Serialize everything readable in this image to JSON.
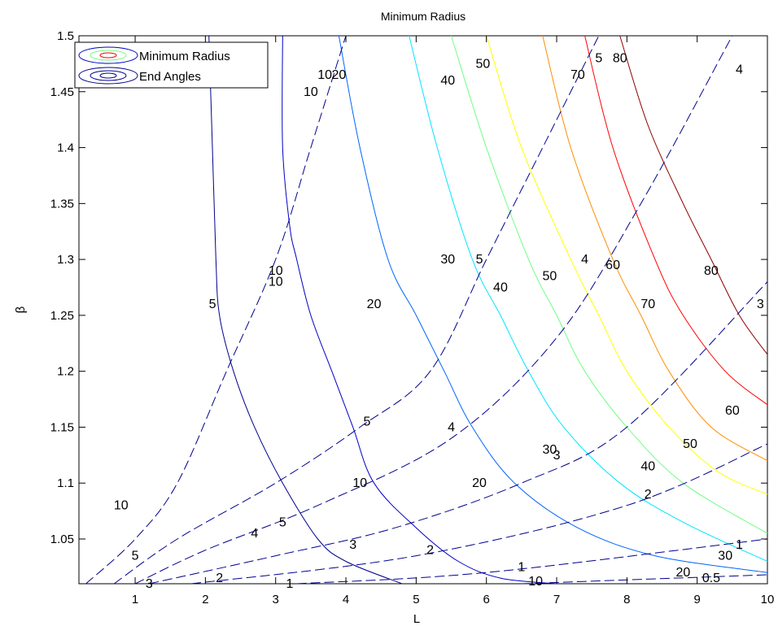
{
  "chart_data": {
    "type": "contour",
    "title": "Minimum Radius",
    "xlabel": "L",
    "ylabel": "β",
    "xlim": [
      0.2,
      10
    ],
    "ylim": [
      1.01,
      1.5
    ],
    "xticks": [
      "1",
      "2",
      "3",
      "4",
      "5",
      "6",
      "7",
      "8",
      "9",
      "10"
    ],
    "yticks": [
      "1.05",
      "1.1",
      "1.15",
      "1.2",
      "1.25",
      "1.3",
      "1.35",
      "1.4",
      "1.45",
      "1.5"
    ],
    "grid": false,
    "legend": {
      "placement": "top-left",
      "entries": [
        "Minimum Radius",
        "End Angles"
      ]
    },
    "series": [
      {
        "name": "Minimum Radius",
        "style": "solid",
        "levels": [
          {
            "level": 5,
            "color": "#00008f",
            "points": [
              [
                2.05,
                1.5
              ],
              [
                2.1,
                1.4
              ],
              [
                2.15,
                1.3
              ],
              [
                2.2,
                1.25
              ],
              [
                2.4,
                1.2
              ],
              [
                2.7,
                1.15
              ],
              [
                3.1,
                1.1
              ],
              [
                3.6,
                1.05
              ],
              [
                4.0,
                1.03
              ],
              [
                4.8,
                1.01
              ]
            ],
            "labels": [
              {
                "text": "5",
                "x": 2.1,
                "y": 1.26
              },
              {
                "text": "5",
                "x": 3.1,
                "y": 1.065
              }
            ]
          },
          {
            "level": 10,
            "color": "#0000c8",
            "points": [
              [
                3.1,
                1.5
              ],
              [
                3.1,
                1.4
              ],
              [
                3.2,
                1.33
              ],
              [
                3.3,
                1.3
              ],
              [
                3.5,
                1.25
              ],
              [
                3.8,
                1.2
              ],
              [
                4.1,
                1.15
              ],
              [
                4.4,
                1.1
              ],
              [
                5.0,
                1.06
              ],
              [
                5.6,
                1.03
              ],
              [
                6.2,
                1.015
              ],
              [
                7.0,
                1.01
              ]
            ],
            "labels": [
              {
                "text": "10",
                "x": 3.7,
                "y": 1.465
              },
              {
                "text": "10",
                "x": 3.0,
                "y": 1.29
              },
              {
                "text": "10",
                "x": 4.2,
                "y": 1.1
              },
              {
                "text": "10",
                "x": 6.7,
                "y": 1.012
              }
            ]
          },
          {
            "level": 20,
            "color": "#0064ff",
            "points": [
              [
                3.9,
                1.5
              ],
              [
                4.2,
                1.4
              ],
              [
                4.6,
                1.3
              ],
              [
                5.0,
                1.25
              ],
              [
                5.4,
                1.2
              ],
              [
                5.8,
                1.15
              ],
              [
                6.4,
                1.1
              ],
              [
                7.3,
                1.06
              ],
              [
                8.4,
                1.035
              ],
              [
                10,
                1.02
              ]
            ],
            "labels": [
              {
                "text": "20",
                "x": 3.9,
                "y": 1.465
              },
              {
                "text": "20",
                "x": 4.4,
                "y": 1.26
              },
              {
                "text": "20",
                "x": 5.9,
                "y": 1.1
              },
              {
                "text": "20",
                "x": 8.8,
                "y": 1.02
              }
            ]
          },
          {
            "level": 30,
            "color": "#00e6ff",
            "points": [
              [
                4.9,
                1.5
              ],
              [
                5.3,
                1.4
              ],
              [
                5.8,
                1.3
              ],
              [
                6.2,
                1.25
              ],
              [
                6.6,
                1.2
              ],
              [
                7.1,
                1.15
              ],
              [
                7.9,
                1.1
              ],
              [
                8.8,
                1.065
              ],
              [
                10,
                1.03
              ]
            ],
            "labels": [
              {
                "text": "30",
                "x": 5.45,
                "y": 1.3
              },
              {
                "text": "30",
                "x": 6.9,
                "y": 1.13
              },
              {
                "text": "30",
                "x": 9.4,
                "y": 1.035
              }
            ]
          },
          {
            "level": 40,
            "color": "#6eff82",
            "points": [
              [
                5.5,
                1.5
              ],
              [
                6.0,
                1.4
              ],
              [
                6.6,
                1.3
              ],
              [
                7.0,
                1.25
              ],
              [
                7.4,
                1.2
              ],
              [
                8.0,
                1.15
              ],
              [
                8.8,
                1.1
              ],
              [
                10,
                1.055
              ]
            ],
            "labels": [
              {
                "text": "40",
                "x": 5.45,
                "y": 1.46
              },
              {
                "text": "40",
                "x": 6.2,
                "y": 1.275
              },
              {
                "text": "40",
                "x": 8.3,
                "y": 1.115
              }
            ]
          },
          {
            "level": 50,
            "color": "#ffff00",
            "points": [
              [
                6.0,
                1.5
              ],
              [
                6.5,
                1.4
              ],
              [
                7.2,
                1.3
              ],
              [
                7.6,
                1.25
              ],
              [
                8.0,
                1.2
              ],
              [
                8.6,
                1.15
              ],
              [
                9.3,
                1.11
              ],
              [
                10,
                1.09
              ]
            ],
            "labels": [
              {
                "text": "50",
                "x": 5.95,
                "y": 1.475
              },
              {
                "text": "50",
                "x": 6.9,
                "y": 1.285
              },
              {
                "text": "50",
                "x": 8.9,
                "y": 1.135
              }
            ]
          },
          {
            "level": 60,
            "color": "#ff8c00",
            "points": [
              [
                6.8,
                1.5
              ],
              [
                7.2,
                1.4
              ],
              [
                7.8,
                1.3
              ],
              [
                8.2,
                1.25
              ],
              [
                8.6,
                1.2
              ],
              [
                9.2,
                1.15
              ],
              [
                10,
                1.12
              ]
            ],
            "labels": [
              {
                "text": "60",
                "x": 7.8,
                "y": 1.295
              },
              {
                "text": "60",
                "x": 9.5,
                "y": 1.165
              }
            ]
          },
          {
            "level": 70,
            "color": "#ff0000",
            "points": [
              [
                7.4,
                1.5
              ],
              [
                7.8,
                1.4
              ],
              [
                8.4,
                1.3
              ],
              [
                8.8,
                1.25
              ],
              [
                9.4,
                1.2
              ],
              [
                10,
                1.17
              ]
            ],
            "labels": [
              {
                "text": "70",
                "x": 7.3,
                "y": 1.465
              },
              {
                "text": "70",
                "x": 8.3,
                "y": 1.26
              }
            ]
          },
          {
            "level": 80,
            "color": "#8b0000",
            "points": [
              [
                7.9,
                1.5
              ],
              [
                8.3,
                1.42
              ],
              [
                8.8,
                1.35
              ],
              [
                9.2,
                1.3
              ],
              [
                9.6,
                1.25
              ],
              [
                10,
                1.215
              ]
            ],
            "labels": [
              {
                "text": "80",
                "x": 7.9,
                "y": 1.48
              },
              {
                "text": "80",
                "x": 9.2,
                "y": 1.29
              }
            ]
          }
        ]
      },
      {
        "name": "End Angles",
        "style": "dashed",
        "levels": [
          {
            "level": 10,
            "color": "#00008f",
            "points": [
              [
                0.3,
                1.01
              ],
              [
                1.0,
                1.05
              ],
              [
                1.6,
                1.1
              ],
              [
                2.3,
                1.2
              ],
              [
                3.0,
                1.3
              ],
              [
                3.5,
                1.4
              ],
              [
                4.0,
                1.5
              ]
            ],
            "labels": [
              {
                "text": "10",
                "x": 0.8,
                "y": 1.08
              },
              {
                "text": "10",
                "x": 3.5,
                "y": 1.45
              },
              {
                "text": "10",
                "x": 3.0,
                "y": 1.28
              }
            ]
          },
          {
            "level": 5,
            "color": "#00008f",
            "points": [
              [
                0.7,
                1.01
              ],
              [
                1.6,
                1.05
              ],
              [
                3.0,
                1.1
              ],
              [
                4.2,
                1.15
              ],
              [
                5.2,
                1.2
              ],
              [
                6.0,
                1.3
              ],
              [
                6.8,
                1.4
              ],
              [
                7.6,
                1.5
              ]
            ],
            "labels": [
              {
                "text": "5",
                "x": 1.0,
                "y": 1.035
              },
              {
                "text": "5",
                "x": 4.3,
                "y": 1.155
              },
              {
                "text": "5",
                "x": 5.9,
                "y": 1.3
              },
              {
                "text": "5",
                "x": 7.6,
                "y": 1.48
              }
            ]
          },
          {
            "level": 4,
            "color": "#00008f",
            "points": [
              [
                1.0,
                1.01
              ],
              [
                2.0,
                1.04
              ],
              [
                3.6,
                1.08
              ],
              [
                5.5,
                1.14
              ],
              [
                7.0,
                1.23
              ],
              [
                8.2,
                1.35
              ],
              [
                9.5,
                1.5
              ]
            ],
            "labels": [
              {
                "text": "4",
                "x": 2.7,
                "y": 1.055
              },
              {
                "text": "4",
                "x": 5.5,
                "y": 1.15
              },
              {
                "text": "4",
                "x": 7.4,
                "y": 1.3
              },
              {
                "text": "4",
                "x": 9.6,
                "y": 1.47
              }
            ]
          },
          {
            "level": 3,
            "color": "#00008f",
            "points": [
              [
                1.2,
                1.01
              ],
              [
                3.0,
                1.035
              ],
              [
                4.7,
                1.06
              ],
              [
                6.5,
                1.1
              ],
              [
                8.0,
                1.15
              ],
              [
                10,
                1.28
              ]
            ],
            "labels": [
              {
                "text": "3",
                "x": 1.2,
                "y": 1.01
              },
              {
                "text": "3",
                "x": 4.1,
                "y": 1.045
              },
              {
                "text": "3",
                "x": 7.0,
                "y": 1.125
              },
              {
                "text": "3",
                "x": 9.9,
                "y": 1.26
              }
            ]
          },
          {
            "level": 2,
            "color": "#00008f",
            "points": [
              [
                1.8,
                1.01
              ],
              [
                5.0,
                1.035
              ],
              [
                8.0,
                1.08
              ],
              [
                10,
                1.135
              ]
            ],
            "labels": [
              {
                "text": "2",
                "x": 2.2,
                "y": 1.015
              },
              {
                "text": "2",
                "x": 5.2,
                "y": 1.04
              },
              {
                "text": "2",
                "x": 8.3,
                "y": 1.09
              }
            ]
          },
          {
            "level": 1,
            "color": "#00008f",
            "points": [
              [
                3.3,
                1.01
              ],
              [
                6.0,
                1.02
              ],
              [
                10,
                1.05
              ]
            ],
            "labels": [
              {
                "text": "1",
                "x": 3.2,
                "y": 1.01
              },
              {
                "text": "1",
                "x": 6.5,
                "y": 1.025
              },
              {
                "text": "1",
                "x": 9.6,
                "y": 1.045
              }
            ]
          },
          {
            "level": 0.5,
            "color": "#00008f",
            "points": [
              [
                6.5,
                1.01
              ],
              [
                10,
                1.018
              ]
            ],
            "labels": [
              {
                "text": "0.5",
                "x": 9.2,
                "y": 1.015
              }
            ]
          }
        ]
      }
    ]
  }
}
